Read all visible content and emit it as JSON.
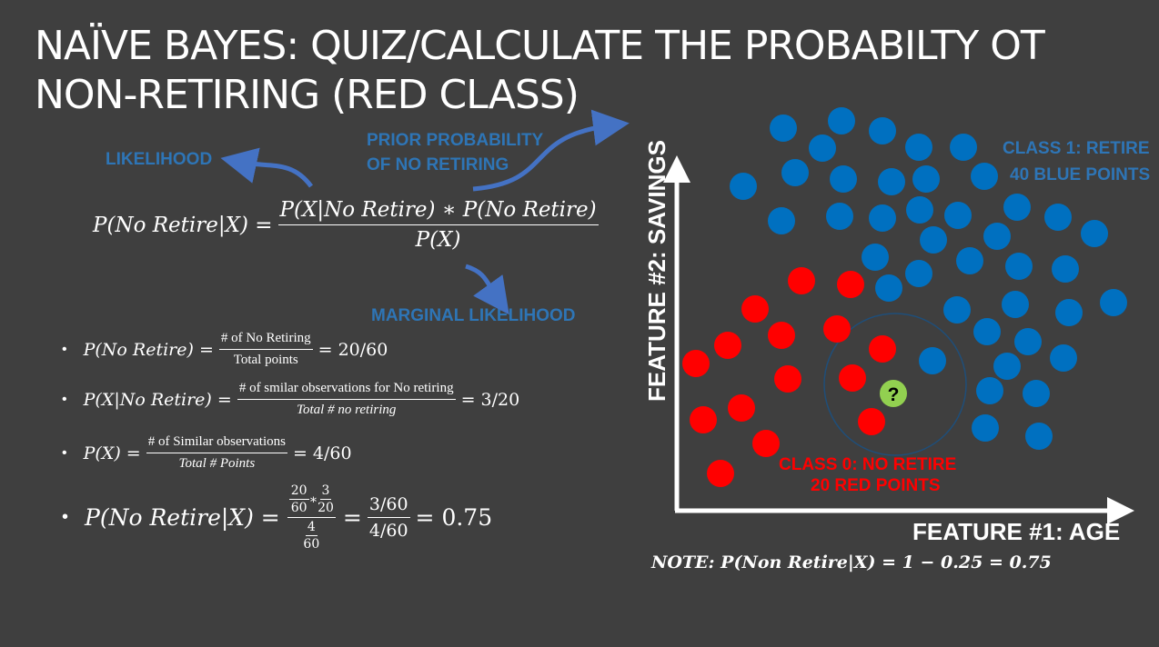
{
  "title": {
    "line1": "NAÏVE BAYES: QUIZ/CALCULATE THE PROBABILTY OT",
    "line2": "NON-RETIRING (RED CLASS)"
  },
  "labels": {
    "likelihood": "LIKELIHOOD",
    "prior_line1": "PRIOR PROBABILITY",
    "prior_line2": "OF NO RETIRING",
    "marginal": "MARGINAL LIKELIHOOD",
    "class1_line1": "CLASS 1: RETIRE",
    "class1_line2": "40 BLUE POINTS",
    "class0_line1": "CLASS 0: NO RETIRE",
    "class0_line2": "20 RED POINTS",
    "x_axis": "FEATURE #1: AGE",
    "y_axis": "FEATURE #2: SAVINGS",
    "unknown_point": "?"
  },
  "formula": {
    "lhs": "P(No Retire|X) =",
    "numerator": "P(X|No Retire) ∗ P(No Retire)",
    "denominator": "P(X)"
  },
  "bullets": [
    {
      "lhs": "P(No Retire) =",
      "num": "# of No Retiring",
      "den": "Total points",
      "rhs": "= 20/60"
    },
    {
      "lhs": "P(X|No Retire) =",
      "num": "# of smilar observations for No retiring",
      "den": "Total # no retiring",
      "rhs": "= 3/20"
    },
    {
      "lhs": "P(X) =",
      "num": "# of Similar observations",
      "den": "Total # Points",
      "rhs": "= 4/60"
    }
  ],
  "final": {
    "lhs": "P(No Retire|X) =",
    "a_num": "20",
    "a_den": "60",
    "times": "∗",
    "b_num": "3",
    "b_den": "20",
    "c_num": "4",
    "c_den": "60",
    "eq2": "=",
    "d_num": "3/60",
    "d_den": "4/60",
    "result": "= 0.75"
  },
  "note": {
    "label": "NOTE",
    "text": ":  P(Non Retire|X) = 1 − 0.25 = 0.75"
  },
  "colors": {
    "background": "#3f3f3f",
    "blue_point": "#0070c0",
    "red_point": "#ff0000",
    "unknown_point": "#92d050",
    "label_blue": "#2e75b6",
    "arrow_blue": "#4472c4"
  }
}
